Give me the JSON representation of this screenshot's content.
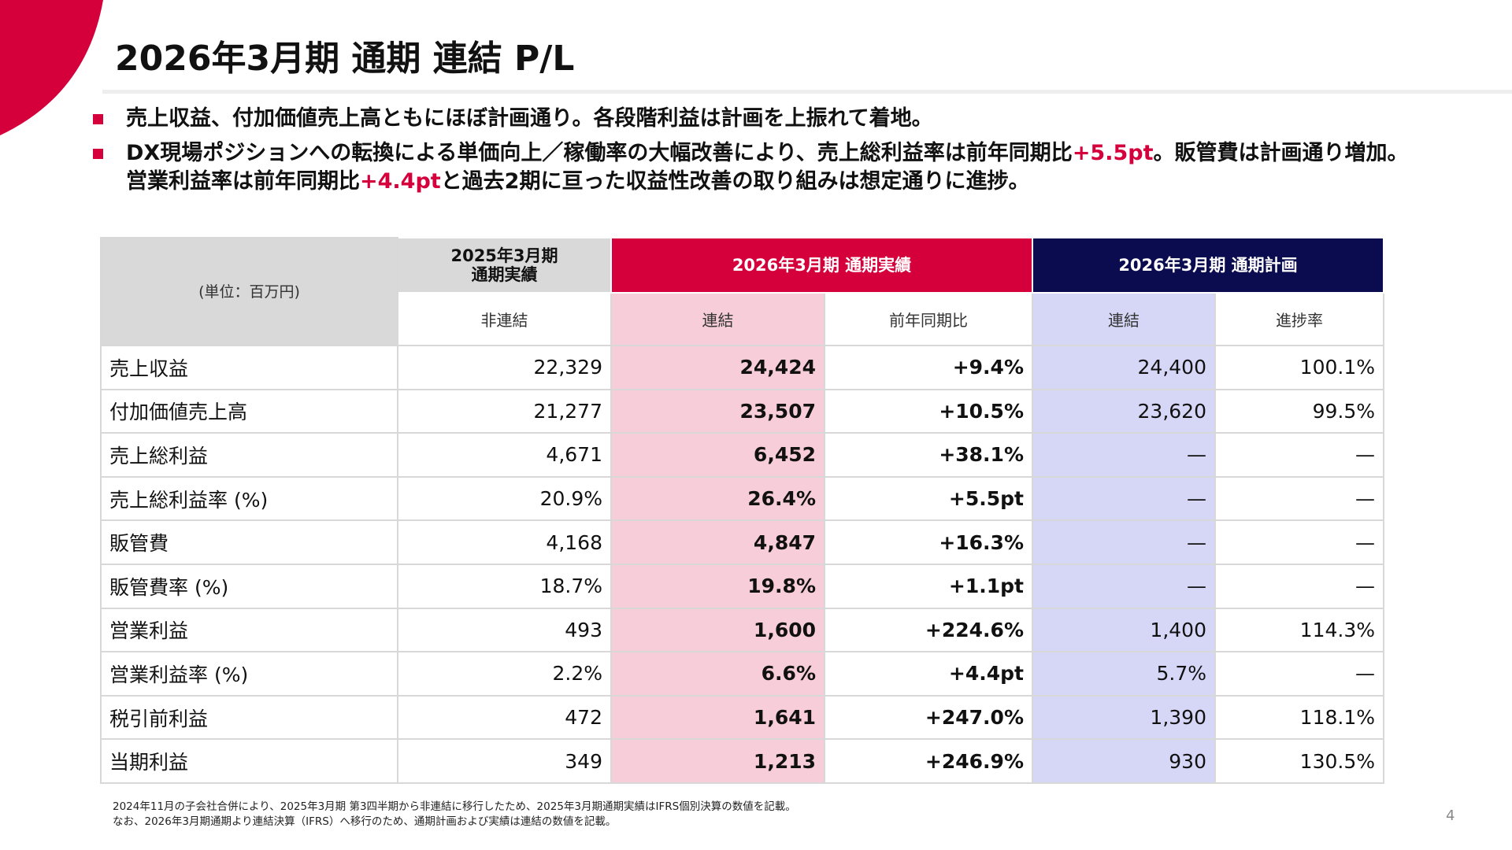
{
  "header": {
    "title": "2026年3月期 通期 連結 P/L"
  },
  "bullets": [
    [
      "売上収益、付加価値売上高ともにほぼ計画通り。各段階利益は計画を上振れて着地。"
    ],
    [
      "DX現場ポジションへの転換による単価向上／稼働率の大幅改善により、売上総利益率は前年同期比",
      "+5.5pt",
      "。販管費は計画通り増加。営業利益率は前年同期比",
      "+4.4pt",
      "と過去2期に亘った収益性改善の取り組みは想定通りに進捗。"
    ]
  ],
  "table": {
    "unit": "(単位：百万円)",
    "groups": [
      "2025年3月期\n通期実績",
      "2026年3月期 通期実績",
      "2026年3月期 通期計画"
    ],
    "subheaders": [
      "非連結",
      "連結",
      "前年同期比",
      "連結",
      "進捗率"
    ],
    "rows": [
      [
        "売上収益",
        "22,329",
        "24,424",
        "+9.4%",
        "24,400",
        "100.1%"
      ],
      [
        "付加価値売上高",
        "21,277",
        "23,507",
        "+10.5%",
        "23,620",
        "99.5%"
      ],
      [
        "売上総利益",
        "4,671",
        "6,452",
        "+38.1%",
        "—",
        "—"
      ],
      [
        "売上総利益率 (%)",
        "20.9%",
        "26.4%",
        "+5.5pt",
        "—",
        "—"
      ],
      [
        "販管費",
        "4,168",
        "4,847",
        "+16.3%",
        "—",
        "—"
      ],
      [
        "販管費率 (%)",
        "18.7%",
        "19.8%",
        "+1.1pt",
        "—",
        "—"
      ],
      [
        "営業利益",
        "493",
        "1,600",
        "+224.6%",
        "1,400",
        "114.3%"
      ],
      [
        "営業利益率 (%)",
        "2.2%",
        "6.6%",
        "+4.4pt",
        "5.7%",
        "—"
      ],
      [
        "税引前利益",
        "472",
        "1,641",
        "+247.0%",
        "1,390",
        "118.1%"
      ],
      [
        "当期利益",
        "349",
        "1,213",
        "+246.9%",
        "930",
        "130.5%"
      ]
    ]
  },
  "footnotes": [
    "2024年11月の子会社合併により、2025年3月期 第3四半期から非連結に移行したため、2025年3月期通期実績はIFRS個別決算の数値を記載。",
    "なお、2026年3月期通期より連結決算（IFRS）へ移行のため、通期計画および実績は連結の数値を記載。"
  ],
  "page_number": "4"
}
